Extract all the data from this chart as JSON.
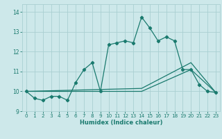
{
  "title": "",
  "xlabel": "Humidex (Indice chaleur)",
  "xlim": [
    -0.5,
    23.5
  ],
  "ylim": [
    9.0,
    14.4
  ],
  "yticks": [
    9,
    10,
    11,
    12,
    13,
    14
  ],
  "xticks": [
    0,
    1,
    2,
    3,
    4,
    5,
    6,
    7,
    8,
    9,
    10,
    11,
    12,
    13,
    14,
    15,
    16,
    17,
    18,
    19,
    20,
    21,
    22,
    23
  ],
  "bg_color": "#cde8ea",
  "line_color": "#1a7a6e",
  "grid_color": "#aacfd2",
  "line1_x": [
    0,
    1,
    2,
    3,
    4,
    5,
    6,
    7,
    8,
    9,
    10,
    11,
    12,
    13,
    14,
    15,
    16,
    17,
    18,
    19,
    20,
    21,
    22,
    23
  ],
  "line1_y": [
    10.0,
    9.65,
    9.55,
    9.75,
    9.75,
    9.55,
    10.45,
    11.1,
    11.45,
    10.0,
    12.35,
    12.45,
    12.55,
    12.45,
    13.75,
    13.2,
    12.55,
    12.75,
    12.55,
    11.1,
    11.1,
    10.35,
    10.0,
    9.95
  ],
  "line2_x": [
    0,
    14,
    20,
    23
  ],
  "line2_y": [
    10.0,
    10.0,
    11.1,
    9.95
  ],
  "line3_x": [
    0,
    14,
    20,
    23
  ],
  "line3_y": [
    10.0,
    10.15,
    11.45,
    9.95
  ]
}
